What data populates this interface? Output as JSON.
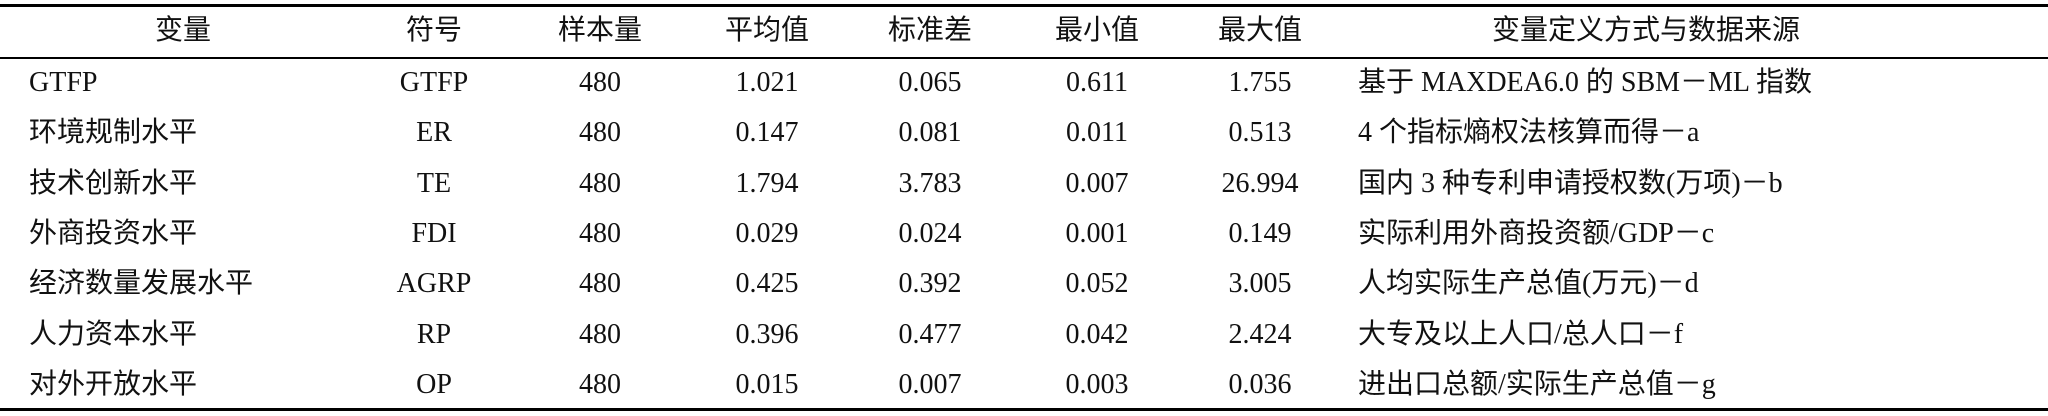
{
  "table": {
    "header": [
      "变量",
      "符号",
      "样本量",
      "平均值",
      "标准差",
      "最小值",
      "最大值",
      "变量定义方式与数据来源"
    ],
    "rows": [
      [
        "GTFP",
        "GTFP",
        "480",
        "1.021",
        "0.065",
        "0.611",
        "1.755",
        "基于 MAXDEA6.0 的 SBM－ML 指数"
      ],
      [
        "环境规制水平",
        "ER",
        "480",
        "0.147",
        "0.081",
        "0.011",
        "0.513",
        "4 个指标熵权法核算而得－a"
      ],
      [
        "技术创新水平",
        "TE",
        "480",
        "1.794",
        "3.783",
        "0.007",
        "26.994",
        "国内 3 种专利申请授权数(万项)－b"
      ],
      [
        "外商投资水平",
        "FDI",
        "480",
        "0.029",
        "0.024",
        "0.001",
        "0.149",
        "实际利用外商投资额/GDP－c"
      ],
      [
        "经济数量发展水平",
        "AGRP",
        "480",
        "0.425",
        "0.392",
        "0.052",
        "3.005",
        "人均实际生产总值(万元)－d"
      ],
      [
        "人力资本水平",
        "RP",
        "480",
        "0.396",
        "0.477",
        "0.042",
        "2.424",
        "大专及以上人口/总人口－f"
      ],
      [
        "对外开放水平",
        "OP",
        "480",
        "0.015",
        "0.007",
        "0.003",
        "0.036",
        "进出口总额/实际生产总值－g"
      ]
    ]
  }
}
